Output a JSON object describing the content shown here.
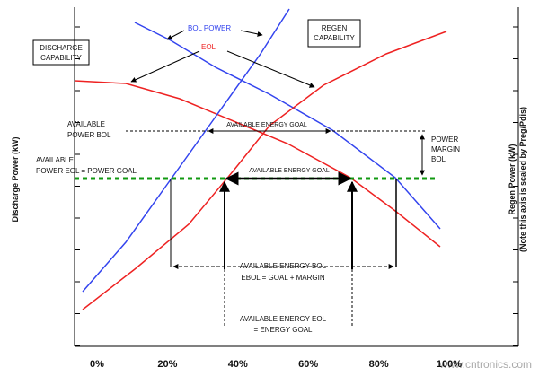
{
  "labels": {
    "bol_power": "BOL POWER",
    "eol": "EOL",
    "regen": [
      "REGEN",
      "CAPABILITY"
    ],
    "discharge": [
      "DISCHARGE",
      "CAPABILITY"
    ],
    "power_bol": [
      "AVAILABLE",
      "POWER  BOL"
    ],
    "energy_goal_top": "AVAILABLE ENERGY GOAL",
    "margin": [
      "POWER",
      "MARGIN",
      "BOL"
    ],
    "power_eol": [
      "AVAILABLE",
      "POWER  EOL  = POWER GOAL"
    ],
    "energy_goal_mid": "AVAILABLE ENERGY GOAL",
    "energy_bol": [
      "AVAILABLE ENERGY BOL",
      "EBOL = GOAL + MARGIN"
    ],
    "energy_eol": [
      "AVAILABLE ENERGY EOL",
      "= ENERGY GOAL"
    ]
  },
  "axes": {
    "left": "Discharge Power (kW)",
    "right": [
      "Regen Power (kW)",
      "(Note this axis is scaled by Preg/Pdis)"
    ],
    "x_ticks": [
      "0%",
      "20%",
      "40%",
      "60%",
      "80%",
      "100%"
    ]
  },
  "watermark": "www.cntronics.com"
}
